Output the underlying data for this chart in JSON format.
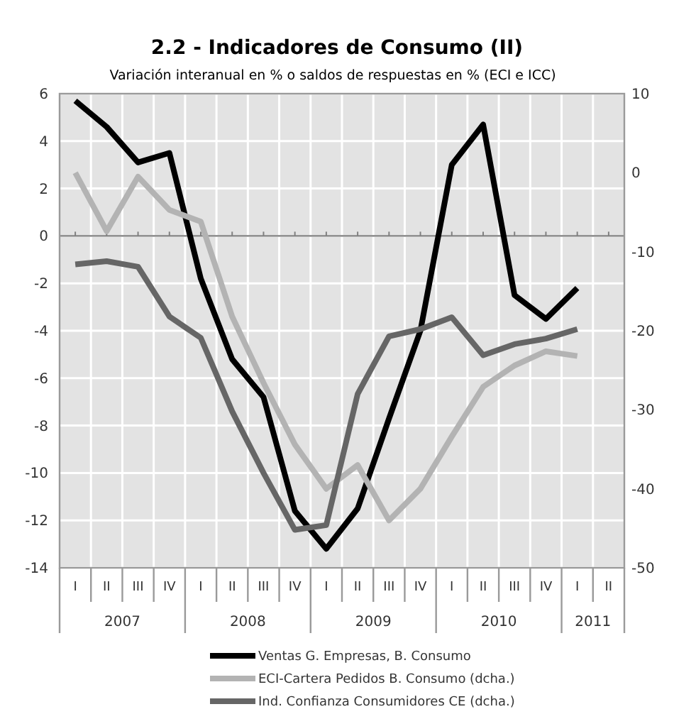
{
  "chart_data": {
    "type": "line",
    "title": "2.2 - Indicadores de Consumo (II)",
    "subtitle": "Variación interanual en % o saldos de respuestas en % (ECI e ICC)",
    "categories": [
      "I",
      "II",
      "III",
      "IV",
      "I",
      "II",
      "III",
      "IV",
      "I",
      "II",
      "III",
      "IV",
      "I",
      "II",
      "III",
      "IV",
      "I",
      "II"
    ],
    "annotations": [
      "2007",
      "2008",
      "2009",
      "2010",
      "2011"
    ],
    "series": [
      {
        "name": "Ventas G. Empresas, B. Consumo",
        "color": "#000000",
        "values": [
          5.7,
          4.6,
          3.1,
          3.5,
          -1.8,
          -5.2,
          -6.8,
          -11.6,
          -13.2,
          -11.5,
          -7.7,
          -4,
          3,
          4.7,
          -2.5,
          -3.5,
          -2.2,
          null
        ]
      },
      {
        "name": "ECI-Cartera Pedidos B. Consumo (dcha.)",
        "color": "#b3b3b3",
        "axis": "y2",
        "values": [
          0,
          -7.4,
          -0.5,
          -4.7,
          -6.2,
          -18.2,
          -26.6,
          -34.4,
          -40,
          -37,
          -44,
          -40,
          -33.4,
          -27.1,
          -24.4,
          -22.6,
          -23.2,
          null
        ]
      },
      {
        "name": "Ind. Confianza Consumidores CE (dcha.)",
        "color": "#666666",
        "axis": "y2",
        "values": [
          -11.6,
          -11.2,
          -11.9,
          -18.2,
          -20.9,
          -30.2,
          -38,
          -45.2,
          -44.6,
          -28,
          -20.7,
          -19.8,
          -18.3,
          -23.1,
          -21.7,
          -21,
          -19.8,
          null
        ]
      }
    ],
    "ylim": [
      -14,
      6
    ],
    "yticks": [
      -14,
      -12,
      -10,
      -8,
      -6,
      -4,
      -2,
      0,
      2,
      4,
      6
    ],
    "y2lim": [
      -50,
      10
    ],
    "y2ticks": [
      -50,
      -40,
      -30,
      -20,
      -10,
      0,
      10
    ],
    "grid": true,
    "legend": "bottom",
    "marker": "none",
    "line_style": "solid"
  }
}
